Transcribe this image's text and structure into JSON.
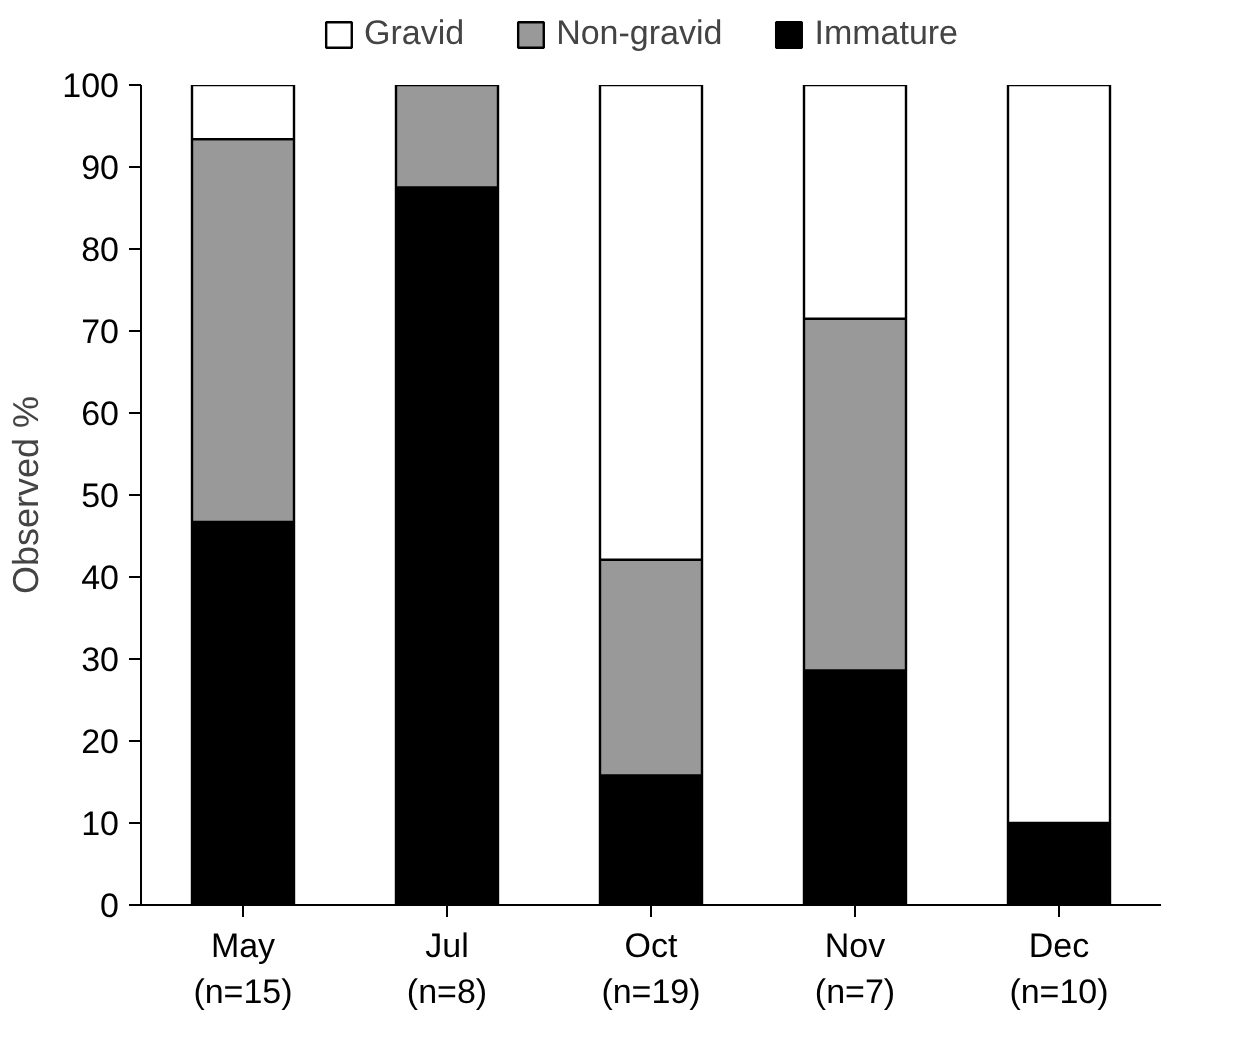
{
  "chart_data": {
    "type": "bar",
    "stacked": true,
    "ylabel": "Observed %",
    "categories": [
      "May\n(n=15)",
      "Jul\n(n=8)",
      "Oct\n(n=19)",
      "Nov\n(n=7)",
      "Dec\n(n=10)"
    ],
    "series": [
      {
        "name": "Immature",
        "color": "#000000",
        "values": [
          46.7,
          87.5,
          15.8,
          28.6,
          10.0
        ]
      },
      {
        "name": "Non-gravid",
        "color": "#999999",
        "values": [
          46.7,
          12.5,
          26.3,
          42.9,
          0
        ]
      },
      {
        "name": "Gravid",
        "color": "#ffffff",
        "values": [
          6.6,
          0,
          57.9,
          28.5,
          90.0
        ]
      }
    ],
    "ylim": [
      0,
      100
    ],
    "yticks": [
      0,
      10,
      20,
      30,
      40,
      50,
      60,
      70,
      80,
      90,
      100
    ],
    "grid": false,
    "legend": "top"
  }
}
